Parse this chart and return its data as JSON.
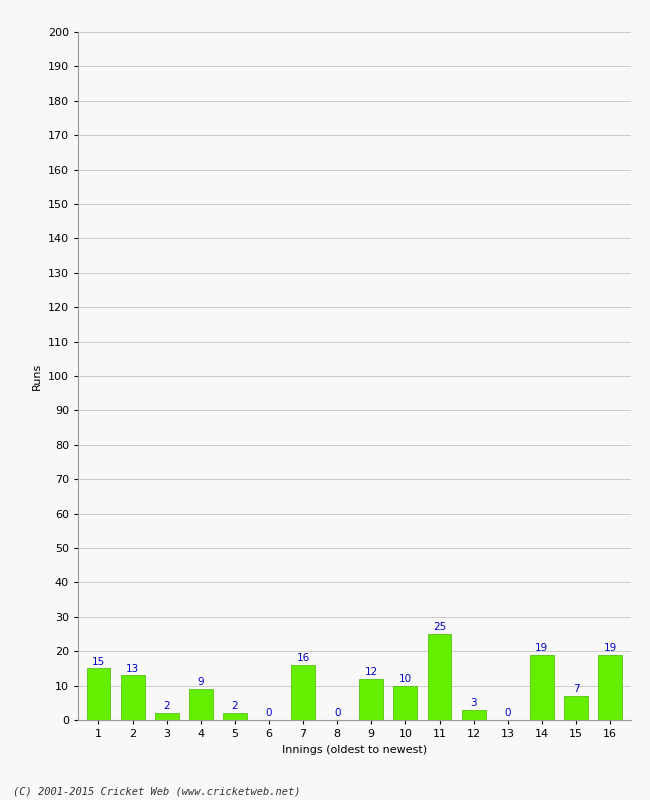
{
  "xlabel": "Innings (oldest to newest)",
  "ylabel": "Runs",
  "categories": [
    1,
    2,
    3,
    4,
    5,
    6,
    7,
    8,
    9,
    10,
    11,
    12,
    13,
    14,
    15,
    16
  ],
  "values": [
    15,
    13,
    2,
    9,
    2,
    0,
    16,
    0,
    12,
    10,
    25,
    3,
    0,
    19,
    7,
    19
  ],
  "bar_color": "#66ee00",
  "bar_edge_color": "#44bb00",
  "label_color": "#0000cc",
  "ylim": [
    0,
    200
  ],
  "yticks": [
    0,
    10,
    20,
    30,
    40,
    50,
    60,
    70,
    80,
    90,
    100,
    110,
    120,
    130,
    140,
    150,
    160,
    170,
    180,
    190,
    200
  ],
  "background_color": "#f8f8f8",
  "grid_color": "#cccccc",
  "footer": "(C) 2001-2015 Cricket Web (www.cricketweb.net)",
  "label_fontsize": 7.5,
  "tick_fontsize": 8,
  "axis_label_fontsize": 8,
  "footer_fontsize": 7.5
}
